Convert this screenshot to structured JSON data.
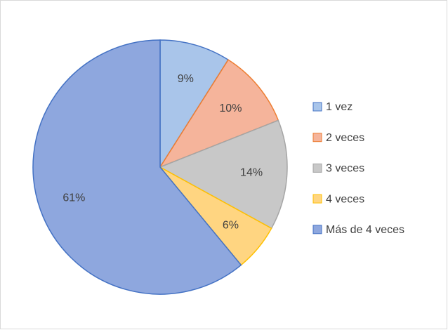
{
  "chart_data": {
    "type": "pie",
    "categories": [
      "1 vez",
      "2 veces",
      "3 veces",
      "4 veces",
      "Más de 4 veces"
    ],
    "values": [
      9,
      10,
      14,
      6,
      61
    ],
    "value_labels": [
      "9%",
      "10%",
      "14%",
      "6%",
      "61%"
    ],
    "colors": [
      "#a9c5ea",
      "#f5b49b",
      "#c8c8c8",
      "#ffd581",
      "#8ea7de"
    ],
    "border_colors": [
      "#4472c4",
      "#ed7d31",
      "#a5a5a5",
      "#ffc000",
      "#4472c4"
    ],
    "legend": "right"
  }
}
